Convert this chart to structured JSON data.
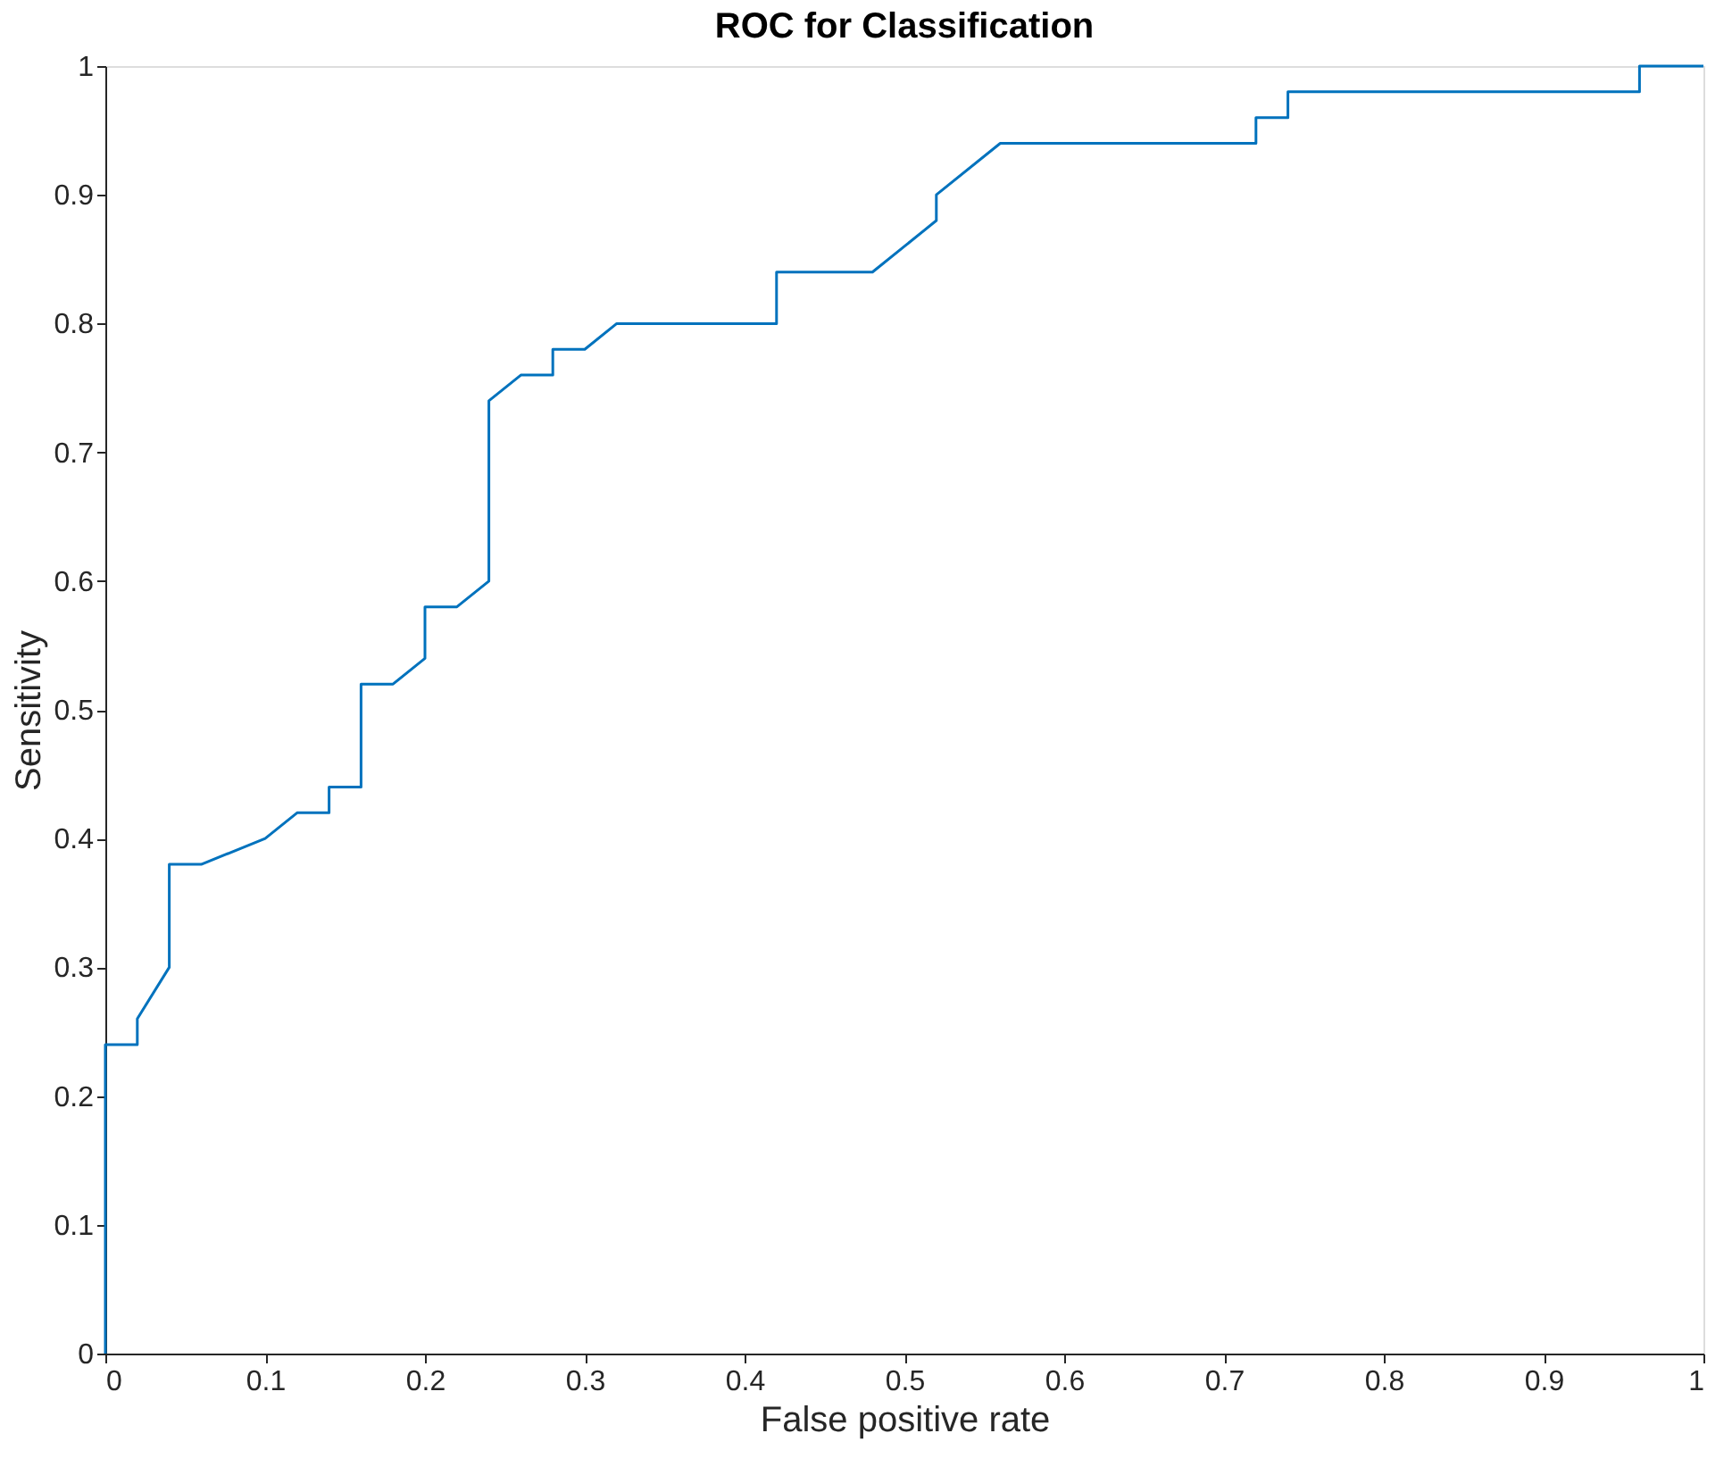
{
  "chart_data": {
    "type": "step",
    "title": "ROC for Classification",
    "xlabel": "False positive rate",
    "ylabel": "Sensitivity",
    "x": [
      0,
      0,
      0.02,
      0.02,
      0.04,
      0.04,
      0.06,
      0.1,
      0.12,
      0.14,
      0.14,
      0.16,
      0.16,
      0.18,
      0.2,
      0.2,
      0.22,
      0.24,
      0.24,
      0.26,
      0.28,
      0.28,
      0.3,
      0.32,
      0.42,
      0.42,
      0.48,
      0.52,
      0.52,
      0.56,
      0.72,
      0.72,
      0.74,
      0.74,
      0.96,
      0.96,
      1
    ],
    "series": [
      {
        "color": "#0072bd",
        "values": [
          0,
          0.24,
          0.24,
          0.26,
          0.3,
          0.38,
          0.38,
          0.4,
          0.42,
          0.42,
          0.44,
          0.44,
          0.52,
          0.52,
          0.54,
          0.58,
          0.58,
          0.6,
          0.74,
          0.76,
          0.76,
          0.78,
          0.78,
          0.8,
          0.8,
          0.84,
          0.84,
          0.88,
          0.9,
          0.94,
          0.94,
          0.96,
          0.96,
          0.98,
          0.98,
          1,
          1
        ]
      }
    ],
    "xlim": [
      0,
      1
    ],
    "ylim": [
      0,
      1
    ],
    "xticks": [
      0,
      0.1,
      0.2,
      0.3,
      0.4,
      0.5,
      0.6,
      0.7,
      0.8,
      0.9,
      1
    ],
    "yticks": [
      0,
      0.1,
      0.2,
      0.3,
      0.4,
      0.5,
      0.6,
      0.7,
      0.8,
      0.9,
      1
    ],
    "grid": false
  }
}
